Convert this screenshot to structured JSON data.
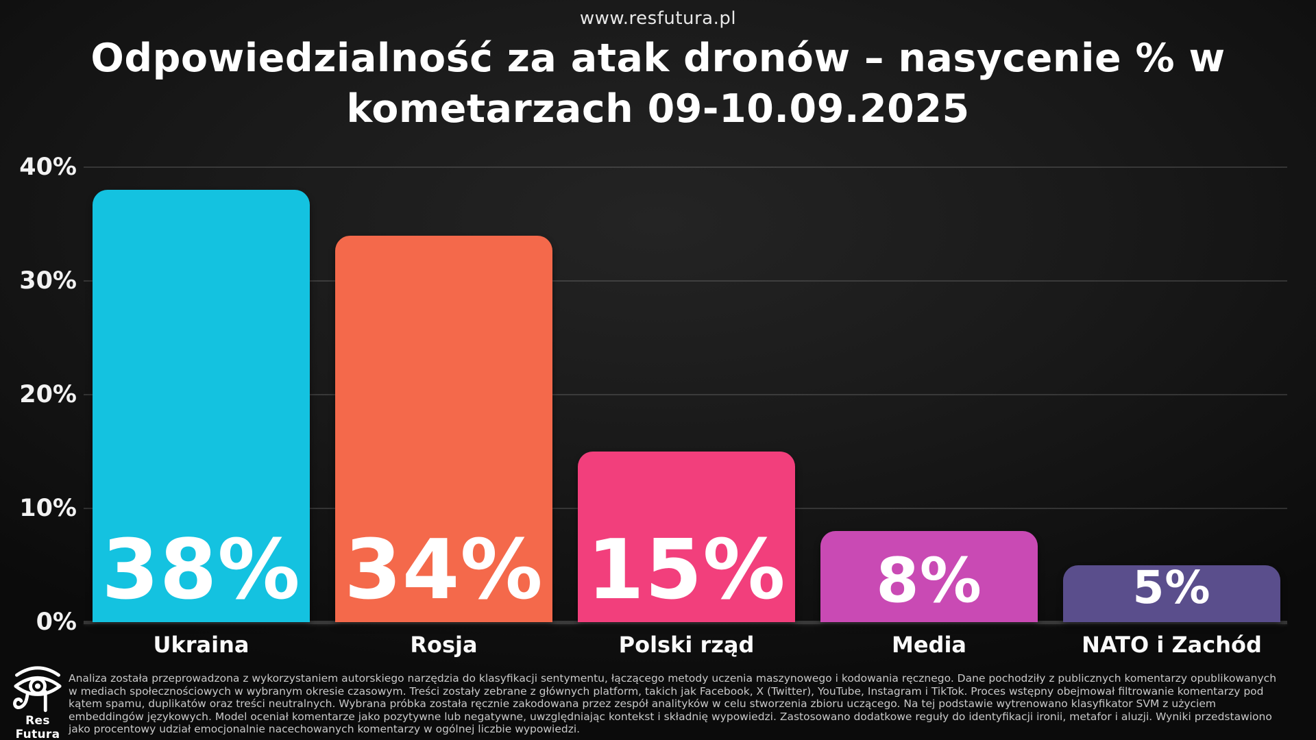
{
  "header": {
    "site_url": "www.resfutura.pl",
    "title_line1": "Odpowiedzialność za atak dronów – nasycenie % w",
    "title_line2": "kometarzach 09-10.09.2025"
  },
  "chart_data": {
    "type": "bar",
    "title": "Odpowiedzialność za atak dronów – nasycenie % w kometarzach 09-10.09.2025",
    "categories": [
      "Ukraina",
      "Rosja",
      "Polski rząd",
      "Media",
      "NATO i Zachód"
    ],
    "values": [
      38,
      34,
      15,
      8,
      5
    ],
    "value_labels": [
      "38%",
      "34%",
      "15%",
      "8%",
      "5%"
    ],
    "bar_colors": [
      "#14c2e0",
      "#f4694b",
      "#f23f7c",
      "#c94ab4",
      "#5a4e8c"
    ],
    "value_font_px": [
      120,
      120,
      120,
      90,
      66
    ],
    "xlabel": "",
    "ylabel": "",
    "ylim": [
      0,
      40
    ],
    "yticks": [
      "0%",
      "10%",
      "20%",
      "30%",
      "40%"
    ],
    "grid": "horizontal faint lines at 10% steps",
    "legend": "none",
    "background": "dark charcoal"
  },
  "footer": {
    "brand": "Res Futura",
    "logo": "eye-of-horus-icon",
    "methodology": "Analiza została przeprowadzona z wykorzystaniem autorskiego narzędzia do klasyfikacji sentymentu, łączącego metody uczenia maszynowego i kodowania ręcznego. Dane pochodziły z publicznych komentarzy opublikowanych w mediach społecznościowych w wybranym okresie czasowym. Treści zostały zebrane z głównych platform, takich jak Facebook, X (Twitter), YouTube, Instagram i TikTok. Proces wstępny obejmował filtrowanie komentarzy pod kątem spamu, duplikatów oraz treści neutralnych. Wybrana próbka została ręcznie zakodowana przez zespół analityków w celu stworzenia zbioru uczącego. Na tej podstawie wytrenowano klasyfikator SVM z użyciem embeddingów językowych. Model oceniał komentarze jako pozytywne lub negatywne, uwzględniając kontekst i składnię wypowiedzi. Zastosowano dodatkowe reguły do identyfikacji ironii, metafor i aluzji. Wyniki przedstawiono jako procentowy udział emocjonalnie nacechowanych komentarzy w ogólnej liczbie wypowiedzi."
  },
  "colors": {
    "background": "#161616",
    "text_primary": "#ffffff",
    "text_secondary": "#c9c9c9",
    "gridline": "rgba(255,255,255,0.14)"
  }
}
